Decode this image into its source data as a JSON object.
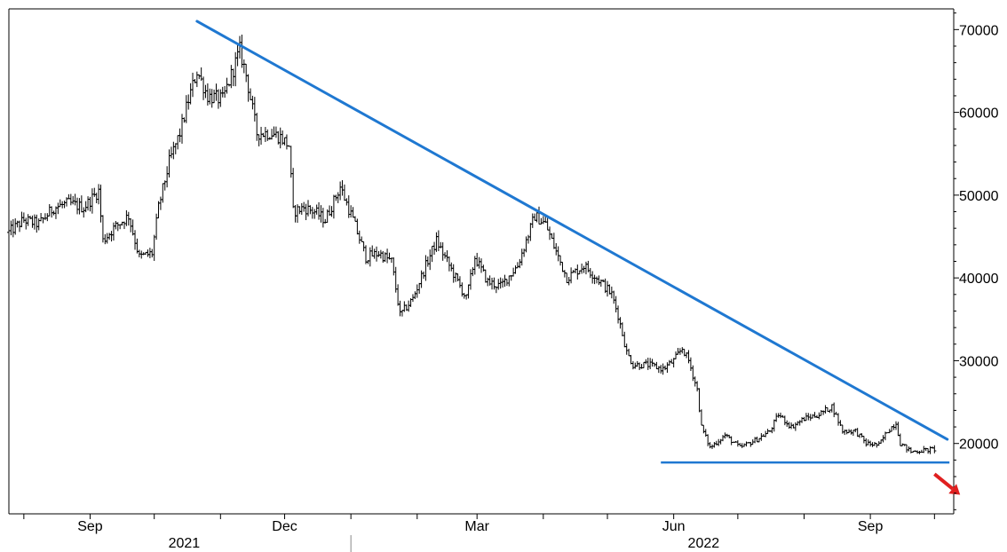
{
  "chart_data": {
    "type": "ohlc",
    "title": "",
    "xlabel": "",
    "ylabel": "",
    "ylim": [
      11500,
      72500
    ],
    "xlim": [
      "2021-07-25",
      "2022-10-10"
    ],
    "y_axis_position": "right",
    "grid": false,
    "legend": "none",
    "yticks": [
      {
        "value": 20000,
        "label": "20000"
      },
      {
        "value": 30000,
        "label": "30000"
      },
      {
        "value": 40000,
        "label": "40000"
      },
      {
        "value": 50000,
        "label": "50000"
      },
      {
        "value": 60000,
        "label": "60000"
      },
      {
        "value": 70000,
        "label": "70000"
      }
    ],
    "xticks": [
      {
        "date": "2021-09-01",
        "label": "Sep"
      },
      {
        "date": "2021-12-01",
        "label": "Dec"
      },
      {
        "date": "2022-03-01",
        "label": "Mar"
      },
      {
        "date": "2022-06-01",
        "label": "Jun"
      },
      {
        "date": "2022-09-01",
        "label": "Sep"
      }
    ],
    "year_labels": [
      {
        "date": "2021-10-15",
        "label": "2021"
      },
      {
        "date": "2022-06-15",
        "label": "2022"
      }
    ],
    "year_divider": "2022-01-01",
    "price_path": [
      [
        "2021-07-25",
        45500
      ],
      [
        "2021-08-01",
        47000
      ],
      [
        "2021-08-08",
        46500
      ],
      [
        "2021-08-15",
        48500
      ],
      [
        "2021-08-22",
        49000
      ],
      [
        "2021-08-29",
        48500
      ],
      [
        "2021-09-05",
        50500
      ],
      [
        "2021-09-07",
        44500
      ],
      [
        "2021-09-12",
        46000
      ],
      [
        "2021-09-19",
        47500
      ],
      [
        "2021-09-24",
        42500
      ],
      [
        "2021-09-30",
        43000
      ],
      [
        "2021-10-03",
        48500
      ],
      [
        "2021-10-08",
        54000
      ],
      [
        "2021-10-13",
        57500
      ],
      [
        "2021-10-17",
        61500
      ],
      [
        "2021-10-21",
        65000
      ],
      [
        "2021-10-26",
        62000
      ],
      [
        "2021-11-02",
        61500
      ],
      [
        "2021-11-10",
        67500
      ],
      [
        "2021-11-13",
        64500
      ],
      [
        "2021-11-18",
        57500
      ],
      [
        "2021-11-25",
        57500
      ],
      [
        "2021-11-29",
        57000
      ],
      [
        "2021-12-03",
        56000
      ],
      [
        "2021-12-05",
        48000
      ],
      [
        "2021-12-10",
        48500
      ],
      [
        "2021-12-15",
        48000
      ],
      [
        "2021-12-20",
        47000
      ],
      [
        "2021-12-27",
        51000
      ],
      [
        "2022-01-02",
        47000
      ],
      [
        "2022-01-08",
        42500
      ],
      [
        "2022-01-14",
        43000
      ],
      [
        "2022-01-20",
        42000
      ],
      [
        "2022-01-24",
        35500
      ],
      [
        "2022-01-30",
        37500
      ],
      [
        "2022-02-05",
        41500
      ],
      [
        "2022-02-10",
        44500
      ],
      [
        "2022-02-18",
        40500
      ],
      [
        "2022-02-24",
        37500
      ],
      [
        "2022-02-28",
        42500
      ],
      [
        "2022-03-06",
        39500
      ],
      [
        "2022-03-12",
        39000
      ],
      [
        "2022-03-20",
        41500
      ],
      [
        "2022-03-28",
        47500
      ],
      [
        "2022-04-02",
        46500
      ],
      [
        "2022-04-08",
        42500
      ],
      [
        "2022-04-12",
        40000
      ],
      [
        "2022-04-20",
        41500
      ],
      [
        "2022-04-28",
        39500
      ],
      [
        "2022-05-03",
        38000
      ],
      [
        "2022-05-06",
        35500
      ],
      [
        "2022-05-10",
        31000
      ],
      [
        "2022-05-13",
        29500
      ],
      [
        "2022-05-20",
        29500
      ],
      [
        "2022-05-27",
        29000
      ],
      [
        "2022-06-01",
        30000
      ],
      [
        "2022-06-05",
        31500
      ],
      [
        "2022-06-08",
        30000
      ],
      [
        "2022-06-12",
        26500
      ],
      [
        "2022-06-14",
        22000
      ],
      [
        "2022-06-18",
        19500
      ],
      [
        "2022-06-25",
        21000
      ],
      [
        "2022-07-02",
        19500
      ],
      [
        "2022-07-10",
        20500
      ],
      [
        "2022-07-16",
        21500
      ],
      [
        "2022-07-20",
        23500
      ],
      [
        "2022-07-26",
        22000
      ],
      [
        "2022-08-01",
        23000
      ],
      [
        "2022-08-08",
        23500
      ],
      [
        "2022-08-14",
        24500
      ],
      [
        "2022-08-19",
        21500
      ],
      [
        "2022-08-25",
        21500
      ],
      [
        "2022-08-30",
        20000
      ],
      [
        "2022-09-05",
        19800
      ],
      [
        "2022-09-09",
        21500
      ],
      [
        "2022-09-13",
        22500
      ],
      [
        "2022-09-15",
        20000
      ],
      [
        "2022-09-20",
        19000
      ],
      [
        "2022-09-27",
        19200
      ],
      [
        "2022-10-01",
        19300
      ]
    ],
    "annotations": {
      "downtrend_line": {
        "start": [
          "2021-10-21",
          71000
        ],
        "end": [
          "2022-10-07",
          20500
        ],
        "color": "#1f78d1"
      },
      "support_line": {
        "start": [
          "2022-05-26",
          17700
        ],
        "end": [
          "2022-10-08",
          17700
        ],
        "color": "#1f78d1"
      },
      "arrow": {
        "start": [
          "2022-10-01",
          16300
        ],
        "end": [
          "2022-10-13",
          13800
        ],
        "color": "#e02020"
      }
    },
    "colors": {
      "bars": "#000000",
      "trendline": "#1f78d1",
      "arrow": "#e02020",
      "axis": "#000000"
    }
  }
}
